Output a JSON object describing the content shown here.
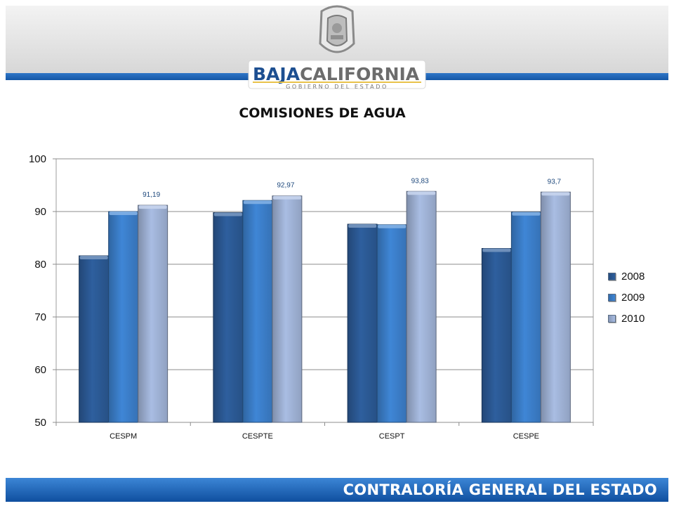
{
  "header": {
    "logo_text_dark": "BAJA",
    "logo_text_light": "CALIFORNIA",
    "logo_subtitle": "GOBIERNO DEL ESTADO"
  },
  "footer": {
    "text": "CONTRALORÍA GENERAL DEL ESTADO"
  },
  "chart_data": {
    "type": "bar",
    "title": "COMISIONES DE AGUA",
    "categories": [
      "CESPM",
      "CESPTE",
      "CESPT",
      "CESPE"
    ],
    "series": [
      {
        "name": "2008",
        "values": [
          81.6,
          89.8,
          87.6,
          83.0
        ],
        "color": "#2e5f9e"
      },
      {
        "name": "2009",
        "values": [
          90.0,
          92.1,
          87.5,
          89.9
        ],
        "color": "#3f86d6"
      },
      {
        "name": "2010",
        "values": [
          91.19,
          92.97,
          93.83,
          93.7
        ],
        "color": "#a9bde3"
      }
    ],
    "data_labels": {
      "series": "2010",
      "labels": [
        "91,19",
        "92,97",
        "93,83",
        "93,7"
      ]
    },
    "ylim": [
      50,
      100
    ],
    "yticks": [
      50,
      60,
      70,
      80,
      90,
      100
    ],
    "grid": true,
    "legend_position": "right"
  }
}
